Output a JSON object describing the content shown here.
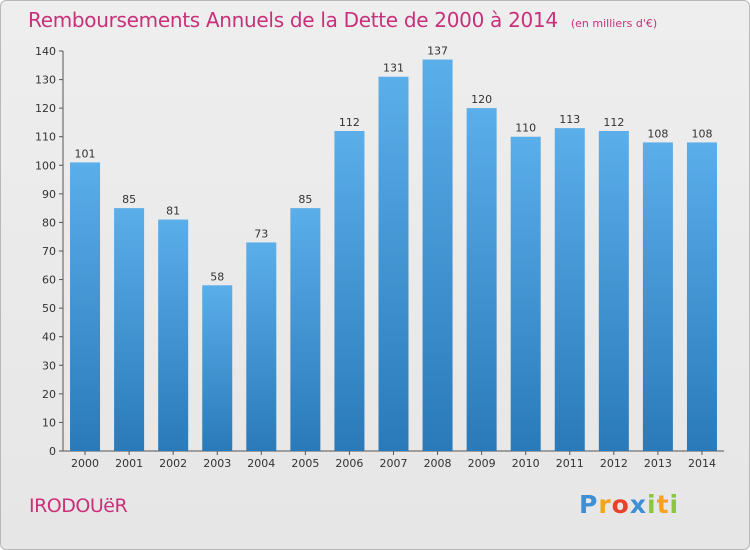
{
  "header": {
    "title": "Remboursements Annuels de la Dette de 2000 à 2014",
    "subtitle": "(en milliers d'€)"
  },
  "footer": {
    "commune": "IRODOUëR",
    "logo": "Proxiti"
  },
  "colors": {
    "accent": "#c8317a",
    "bar_top": "#5aaeea",
    "bar_bottom": "#2a7ab9"
  },
  "chart_data": {
    "type": "bar",
    "categories": [
      "2000",
      "2001",
      "2002",
      "2003",
      "2004",
      "2005",
      "2006",
      "2007",
      "2008",
      "2009",
      "2010",
      "2011",
      "2012",
      "2013",
      "2014"
    ],
    "values": [
      101,
      85,
      81,
      58,
      73,
      85,
      112,
      131,
      137,
      120,
      110,
      113,
      112,
      108,
      108
    ],
    "title": "Remboursements Annuels de la Dette de 2000 à 2014",
    "subtitle": "(en milliers d'€)",
    "xlabel": "",
    "ylabel": "",
    "ylim": [
      0,
      140
    ],
    "yticks": [
      0,
      10,
      20,
      30,
      40,
      50,
      60,
      70,
      80,
      90,
      100,
      110,
      120,
      130,
      140
    ],
    "grid": false,
    "data_labels": true
  }
}
